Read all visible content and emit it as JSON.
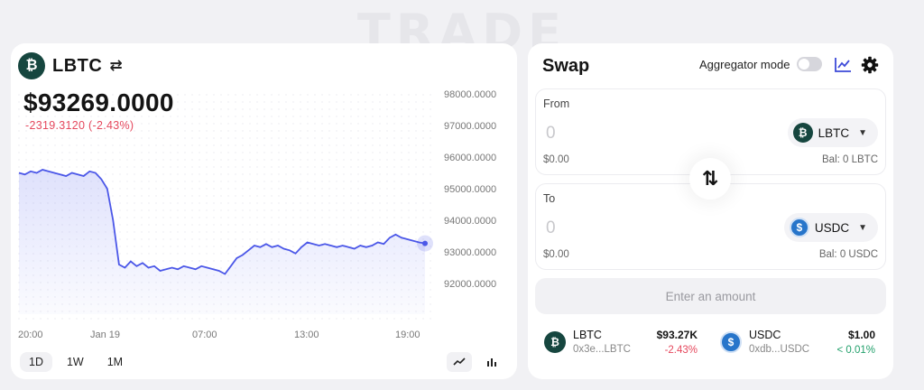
{
  "background_title": "TRADE",
  "chart_panel": {
    "token_name": "LBTC",
    "token_icon": "bitcoin-icon",
    "price": "$93269.0000",
    "change": "-2319.3120 (-2.43%)",
    "ranges": [
      "1D",
      "1W",
      "1M"
    ],
    "active_range": "1D",
    "colors": {
      "line": "#4b57e8",
      "negative": "#e5485d"
    }
  },
  "chart_data": {
    "type": "area",
    "x_tick_labels": [
      "20:00",
      "Jan 19",
      "07:00",
      "13:00",
      "19:00"
    ],
    "y_tick_labels": [
      "98000.0000",
      "97000.0000",
      "96000.0000",
      "95000.0000",
      "94000.0000",
      "93000.0000",
      "92000.0000"
    ],
    "ylim": [
      91500,
      98200
    ],
    "y_ticks": [
      98000,
      97000,
      96000,
      95000,
      94000,
      93000,
      92000
    ],
    "grid": "dotted",
    "series": [
      {
        "points": [
          [
            0,
            95500
          ],
          [
            3,
            95450
          ],
          [
            6,
            95550
          ],
          [
            9,
            95500
          ],
          [
            12,
            95600
          ],
          [
            15,
            95550
          ],
          [
            18,
            95500
          ],
          [
            21,
            95450
          ],
          [
            24,
            95400
          ],
          [
            27,
            95500
          ],
          [
            30,
            95450
          ],
          [
            33,
            95400
          ],
          [
            36,
            95550
          ],
          [
            39,
            95500
          ],
          [
            42,
            95300
          ],
          [
            45,
            95000
          ],
          [
            48,
            94000
          ],
          [
            51,
            92600
          ],
          [
            54,
            92500
          ],
          [
            57,
            92700
          ],
          [
            60,
            92550
          ],
          [
            63,
            92650
          ],
          [
            66,
            92500
          ],
          [
            69,
            92550
          ],
          [
            72,
            92400
          ],
          [
            75,
            92450
          ],
          [
            78,
            92500
          ],
          [
            81,
            92450
          ],
          [
            84,
            92550
          ],
          [
            87,
            92500
          ],
          [
            90,
            92450
          ],
          [
            93,
            92550
          ],
          [
            96,
            92500
          ],
          [
            99,
            92450
          ],
          [
            102,
            92400
          ],
          [
            105,
            92300
          ],
          [
            108,
            92550
          ],
          [
            111,
            92800
          ],
          [
            114,
            92900
          ],
          [
            117,
            93050
          ],
          [
            120,
            93200
          ],
          [
            123,
            93150
          ],
          [
            126,
            93250
          ],
          [
            129,
            93150
          ],
          [
            132,
            93200
          ],
          [
            135,
            93100
          ],
          [
            138,
            93050
          ],
          [
            141,
            92950
          ],
          [
            144,
            93150
          ],
          [
            147,
            93300
          ],
          [
            150,
            93250
          ],
          [
            153,
            93200
          ],
          [
            156,
            93250
          ],
          [
            159,
            93200
          ],
          [
            162,
            93150
          ],
          [
            165,
            93200
          ],
          [
            168,
            93150
          ],
          [
            171,
            93100
          ],
          [
            174,
            93200
          ],
          [
            177,
            93150
          ],
          [
            180,
            93200
          ],
          [
            183,
            93300
          ],
          [
            186,
            93250
          ],
          [
            189,
            93450
          ],
          [
            192,
            93550
          ],
          [
            195,
            93450
          ],
          [
            198,
            93400
          ],
          [
            201,
            93350
          ],
          [
            204,
            93300
          ],
          [
            207,
            93269
          ]
        ]
      }
    ]
  },
  "swap_panel": {
    "title": "Swap",
    "aggregator_label": "Aggregator mode",
    "aggregator_on": false,
    "from": {
      "label": "From",
      "amount": "0",
      "usd": "$0.00",
      "token": "LBTC",
      "balance": "Bal: 0 LBTC"
    },
    "to": {
      "label": "To",
      "amount": "0",
      "usd": "$0.00",
      "token": "USDC",
      "balance": "Bal: 0 USDC"
    },
    "action_label": "Enter an amount",
    "tokens": [
      {
        "name": "LBTC",
        "address": "0x3e...LBTC",
        "price": "$93.27K",
        "change": "-2.43%",
        "direction": "down"
      },
      {
        "name": "USDC",
        "address": "0xdb...USDC",
        "price": "$1.00",
        "change": "< 0.01%",
        "direction": "up"
      }
    ]
  }
}
